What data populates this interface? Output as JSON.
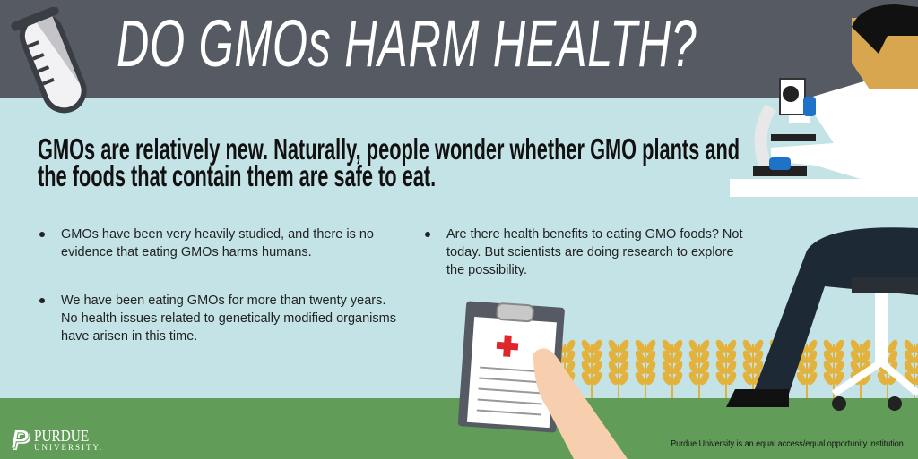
{
  "header": {
    "title": "DO GMOs HARM HEALTH?"
  },
  "intro": "GMOs are relatively new. Naturally, people wonder whether GMO plants and the foods that contain them are safe to eat.",
  "bullets": [
    "GMOs have been very heavily studied, and there is no evidence that eating GMOs harms humans.",
    "We have been eating GMOs for more than twenty years. No health issues related to genetically modified organisms have arisen in this time.",
    "Are there health benefits to eating GMO foods? Not today. But scientists are doing research to explore the possibility."
  ],
  "footer": {
    "logo_name": "PURDUE",
    "logo_sub": "UNIVERSITY.",
    "disclaimer": "Purdue University is an equal access/equal opportunity institution."
  },
  "colors": {
    "header": "#555a63",
    "background": "#c4e3e6",
    "ground": "#629c59",
    "wheat": "#e3b23c",
    "cross": "#e0262b"
  }
}
